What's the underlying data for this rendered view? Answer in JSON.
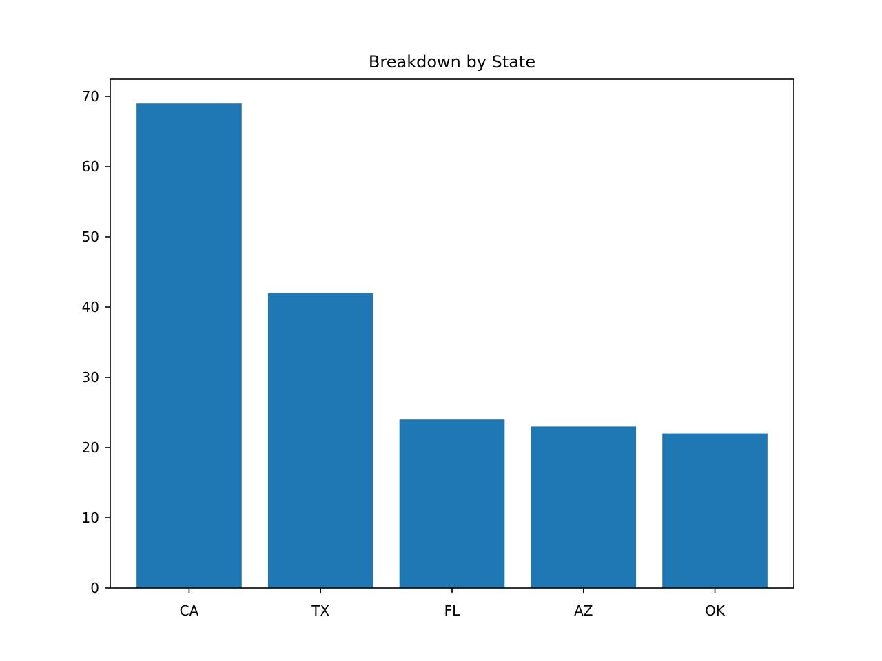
{
  "chart_data": {
    "type": "bar",
    "title": "Breakdown by State",
    "xlabel": "",
    "ylabel": "",
    "categories": [
      "CA",
      "TX",
      "FL",
      "AZ",
      "OK"
    ],
    "values": [
      69,
      42,
      24,
      23,
      22
    ],
    "ylim": [
      0,
      72.45
    ],
    "yticks": [
      0,
      10,
      20,
      30,
      40,
      50,
      60,
      70
    ],
    "grid": false,
    "bar_color": "#1f77b4"
  }
}
